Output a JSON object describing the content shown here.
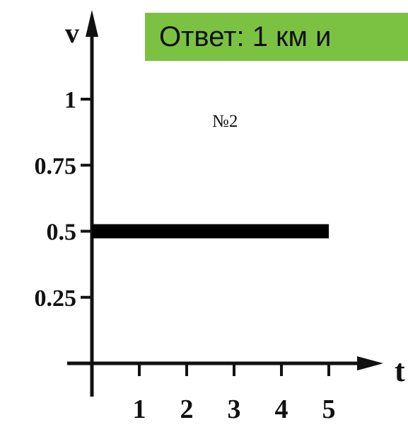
{
  "banner": {
    "text": "Ответ: 1 км и",
    "color": "#7cc242"
  },
  "problem_number": "№2",
  "chart_data": {
    "type": "line",
    "xlabel": "t",
    "ylabel": "v",
    "xlim": [
      0,
      5
    ],
    "ylim": [
      0,
      1
    ],
    "x_ticks": [
      "1",
      "2",
      "3",
      "4",
      "5"
    ],
    "y_ticks": [
      "0.25",
      "0.5",
      "0.75",
      "1"
    ],
    "series": [
      {
        "x": [
          0,
          5
        ],
        "y": [
          0.5,
          0.5
        ]
      }
    ],
    "line_color": "#000000"
  }
}
